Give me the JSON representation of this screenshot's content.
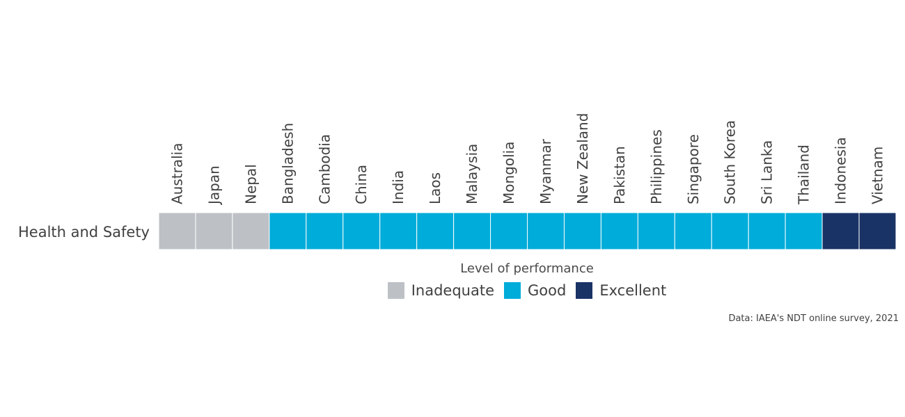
{
  "chart_data": {
    "type": "heatmap",
    "rows": [
      "Health and Safety"
    ],
    "categories": [
      "Australia",
      "Japan",
      "Nepal",
      "Bangladesh",
      "Cambodia",
      "China",
      "India",
      "Laos",
      "Malaysia",
      "Mongolia",
      "Myanmar",
      "New Zealand",
      "Pakistan",
      "Philippines",
      "Singapore",
      "South Korea",
      "Sri Lanka",
      "Thailand",
      "Indonesia",
      "Vietnam"
    ],
    "values": [
      "Inadequate",
      "Inadequate",
      "Inadequate",
      "Good",
      "Good",
      "Good",
      "Good",
      "Good",
      "Good",
      "Good",
      "Good",
      "Good",
      "Good",
      "Good",
      "Good",
      "Good",
      "Good",
      "Good",
      "Excellent",
      "Excellent"
    ],
    "legend_title": "Level of performance",
    "legend": [
      {
        "label": "Inadequate",
        "color": "#bdc1c6"
      },
      {
        "label": "Good",
        "color": "#00acd9"
      },
      {
        "label": "Excellent",
        "color": "#1a3366"
      }
    ],
    "legend_placement": "bottom",
    "source": "Data: IAEA's NDT online survey, 2021"
  }
}
